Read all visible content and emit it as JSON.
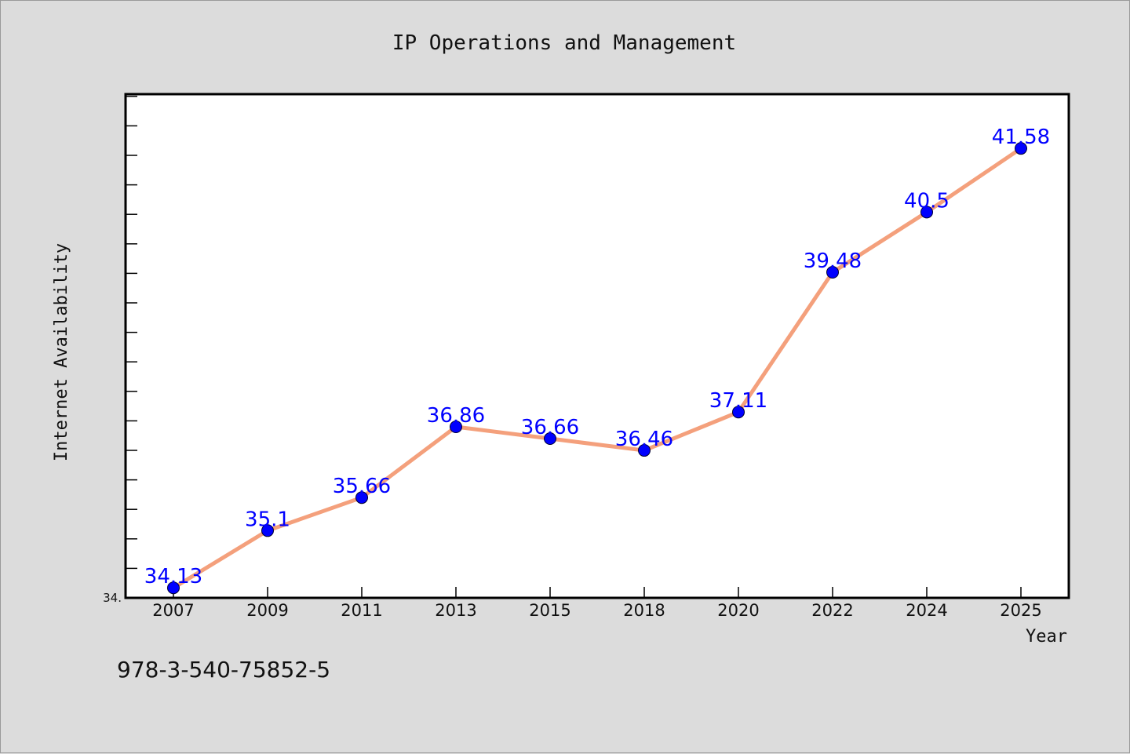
{
  "chart_data": {
    "type": "line",
    "title": "IP Operations and Management",
    "xlabel": "Year",
    "ylabel": "Internet Availability",
    "categories": [
      "2007",
      "2009",
      "2011",
      "2013",
      "2015",
      "2018",
      "2020",
      "2022",
      "2024",
      "2025"
    ],
    "values": [
      34.13,
      35.1,
      35.66,
      36.86,
      36.66,
      36.46,
      37.11,
      39.48,
      40.5,
      41.58
    ],
    "data_labels": [
      "34.13",
      "35.1",
      "35.66",
      "36.86",
      "36.66",
      "36.46",
      "37.11",
      "39.48",
      "40.5",
      "41.58"
    ],
    "y_tick_label": "34.",
    "ylim": [
      33.96,
      42.5
    ],
    "grid": false,
    "line_color": "#f4a07c",
    "marker_color": "#0000ff",
    "label_color": "#0000ff",
    "background_color": "#dcdcdc",
    "plot_background": "#ffffff"
  },
  "footer_text": "978-3-540-75852-5"
}
